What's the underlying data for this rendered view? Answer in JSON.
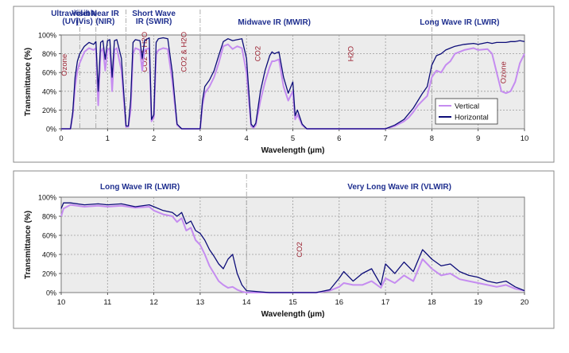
{
  "colors": {
    "vertical": "#c58cf0",
    "horizontal": "#0c0c78",
    "region_label": "#1f2f8f",
    "gas_label": "#9c2332",
    "plot_bg": "#ececec",
    "panel_bg": "#ffffff"
  },
  "chart_data": [
    {
      "type": "line",
      "xlabel": "Wavelength (µm)",
      "ylabel": "Transmittance (%)",
      "xlim": [
        0,
        10
      ],
      "ylim": [
        0,
        100
      ],
      "x_ticks": [
        "0",
        "1",
        "2",
        "3",
        "4",
        "5",
        "6",
        "7",
        "8",
        "9",
        "10"
      ],
      "y_ticks": [
        "0%",
        "20%",
        "40%",
        "60%",
        "80%",
        "100%"
      ],
      "grid": true,
      "legend_position": "right-middle",
      "region_labels": [
        {
          "text": "Ultraviolet\n(UV)",
          "x": 0.2
        },
        {
          "text": "Visible\n(Vis)",
          "x": 0.5
        },
        {
          "text": "Near IR\n(NIR)",
          "x": 0.95
        },
        {
          "text": "Short Wave\nIR (SWIR)",
          "x": 2.0
        },
        {
          "text": "Midwave IR (MWIR)",
          "x": 4.6
        },
        {
          "text": "Long Wave IR (LWIR)",
          "x": 8.6
        }
      ],
      "region_dividers": [
        0.4,
        0.75,
        1.4,
        3.0,
        8.0
      ],
      "gas_labels": [
        {
          "text": "Ozone",
          "x": 0.12,
          "y": 68
        },
        {
          "text": "CO2 & H2O",
          "x": 1.85,
          "y": 82
        },
        {
          "text": "CO2 & H2O",
          "x": 2.7,
          "y": 82
        },
        {
          "text": "CO2",
          "x": 4.3,
          "y": 80
        },
        {
          "text": "H2O",
          "x": 6.3,
          "y": 80
        },
        {
          "text": "Ozone",
          "x": 9.6,
          "y": 60
        }
      ],
      "series": [
        {
          "name": "Vertical",
          "x": [
            0,
            0.2,
            0.25,
            0.3,
            0.35,
            0.4,
            0.5,
            0.6,
            0.7,
            0.75,
            0.8,
            0.85,
            0.9,
            0.95,
            1.0,
            1.05,
            1.1,
            1.15,
            1.2,
            1.3,
            1.4,
            1.45,
            1.5,
            1.55,
            1.6,
            1.7,
            1.75,
            1.8,
            1.9,
            1.95,
            2.0,
            2.05,
            2.1,
            2.2,
            2.3,
            2.4,
            2.5,
            2.6,
            3.0,
            3.05,
            3.1,
            3.2,
            3.3,
            3.4,
            3.5,
            3.6,
            3.7,
            3.8,
            3.9,
            4.0,
            4.1,
            4.15,
            4.2,
            4.3,
            4.4,
            4.5,
            4.55,
            4.6,
            4.7,
            4.8,
            4.9,
            5.0,
            5.05,
            5.1,
            5.2,
            5.3,
            5.5,
            6.0,
            6.5,
            7.0,
            7.2,
            7.4,
            7.5,
            7.6,
            7.7,
            7.8,
            7.9,
            8.0,
            8.1,
            8.2,
            8.3,
            8.4,
            8.5,
            8.7,
            8.9,
            9.0,
            9.2,
            9.3,
            9.4,
            9.5,
            9.6,
            9.7,
            9.8,
            9.9,
            10.0
          ],
          "values": [
            0,
            0,
            15,
            45,
            62,
            70,
            82,
            86,
            84,
            86,
            25,
            82,
            86,
            62,
            84,
            86,
            40,
            84,
            86,
            62,
            2,
            2,
            20,
            80,
            86,
            84,
            62,
            84,
            86,
            8,
            12,
            80,
            84,
            86,
            85,
            50,
            4,
            0,
            0,
            25,
            38,
            45,
            55,
            70,
            88,
            90,
            85,
            88,
            86,
            60,
            3,
            1,
            4,
            30,
            50,
            66,
            72,
            72,
            74,
            45,
            30,
            40,
            10,
            15,
            4,
            0,
            0,
            0,
            0,
            0,
            3,
            8,
            12,
            18,
            25,
            30,
            35,
            55,
            62,
            60,
            68,
            72,
            80,
            84,
            86,
            84,
            85,
            80,
            60,
            40,
            38,
            40,
            50,
            70,
            80
          ]
        },
        {
          "name": "Horizontal",
          "x": [
            0,
            0.2,
            0.25,
            0.3,
            0.35,
            0.4,
            0.5,
            0.6,
            0.7,
            0.75,
            0.8,
            0.85,
            0.9,
            0.95,
            1.0,
            1.05,
            1.1,
            1.15,
            1.2,
            1.3,
            1.4,
            1.45,
            1.5,
            1.55,
            1.6,
            1.7,
            1.75,
            1.8,
            1.9,
            1.95,
            2.0,
            2.05,
            2.1,
            2.2,
            2.3,
            2.4,
            2.5,
            2.6,
            3.0,
            3.05,
            3.1,
            3.2,
            3.3,
            3.4,
            3.5,
            3.6,
            3.7,
            3.8,
            3.9,
            4.0,
            4.1,
            4.15,
            4.2,
            4.3,
            4.4,
            4.5,
            4.55,
            4.6,
            4.7,
            4.8,
            4.9,
            5.0,
            5.05,
            5.1,
            5.2,
            5.3,
            5.5,
            6.0,
            6.5,
            7.0,
            7.2,
            7.4,
            7.5,
            7.6,
            7.7,
            7.8,
            7.9,
            8.0,
            8.1,
            8.2,
            8.3,
            8.4,
            8.5,
            8.7,
            8.9,
            9.0,
            9.2,
            9.3,
            9.4,
            9.5,
            9.6,
            9.7,
            9.8,
            9.9,
            10.0
          ],
          "values": [
            0,
            0,
            18,
            55,
            72,
            80,
            88,
            92,
            90,
            93,
            40,
            92,
            94,
            74,
            94,
            95,
            55,
            94,
            95,
            75,
            3,
            3,
            30,
            92,
            95,
            94,
            75,
            94,
            97,
            10,
            15,
            92,
            96,
            97,
            96,
            60,
            5,
            0,
            0,
            30,
            45,
            52,
            62,
            78,
            93,
            96,
            94,
            95,
            96,
            75,
            5,
            2,
            6,
            40,
            62,
            78,
            82,
            80,
            82,
            55,
            38,
            50,
            14,
            20,
            5,
            0,
            0,
            0,
            0,
            0,
            4,
            10,
            16,
            22,
            30,
            38,
            45,
            68,
            78,
            80,
            84,
            86,
            88,
            90,
            91,
            90,
            92,
            91,
            92,
            92,
            92,
            93,
            93,
            94,
            93
          ]
        }
      ]
    },
    {
      "type": "line",
      "xlabel": "Wavelength (µm)",
      "ylabel": "Transmittance (%)",
      "xlim": [
        10,
        20
      ],
      "ylim": [
        0,
        100
      ],
      "x_ticks": [
        "10",
        "11",
        "12",
        "13",
        "14",
        "15",
        "16",
        "17",
        "18",
        "19",
        "20"
      ],
      "y_ticks": [
        "0%",
        "20%",
        "40%",
        "60%",
        "80%",
        "100%"
      ],
      "grid": true,
      "region_labels": [
        {
          "text": "Long Wave IR (LWIR)",
          "x": 11.7
        },
        {
          "text": "Very Long Wave IR (VLWIR)",
          "x": 17.3
        }
      ],
      "region_dividers": [
        14.0
      ],
      "gas_labels": [
        {
          "text": "CO2",
          "x": 15.2,
          "y": 45
        }
      ],
      "series": [
        {
          "name": "Vertical",
          "x": [
            10,
            10.05,
            10.2,
            10.5,
            10.8,
            11,
            11.3,
            11.6,
            11.9,
            12.0,
            12.2,
            12.4,
            12.5,
            12.6,
            12.7,
            12.8,
            12.9,
            13.0,
            13.1,
            13.2,
            13.3,
            13.4,
            13.5,
            13.6,
            13.7,
            13.8,
            13.9,
            14.0,
            14.5,
            15,
            15.5,
            15.8,
            16.0,
            16.1,
            16.3,
            16.5,
            16.7,
            16.9,
            17.0,
            17.2,
            17.4,
            17.6,
            17.8,
            17.9,
            18.0,
            18.2,
            18.4,
            18.6,
            18.8,
            19.0,
            19.2,
            19.4,
            19.6,
            19.8,
            20
          ],
          "values": [
            80,
            88,
            92,
            90,
            91,
            90,
            91,
            89,
            90,
            86,
            82,
            80,
            74,
            78,
            65,
            68,
            55,
            50,
            40,
            28,
            20,
            12,
            8,
            5,
            6,
            3,
            1,
            0,
            0,
            0,
            0,
            2,
            6,
            10,
            8,
            8,
            12,
            5,
            15,
            10,
            18,
            12,
            35,
            30,
            25,
            18,
            20,
            14,
            12,
            10,
            8,
            6,
            8,
            4,
            2
          ]
        },
        {
          "name": "Horizontal",
          "x": [
            10,
            10.05,
            10.2,
            10.5,
            10.8,
            11,
            11.3,
            11.6,
            11.9,
            12.0,
            12.2,
            12.4,
            12.5,
            12.6,
            12.7,
            12.8,
            12.9,
            13.0,
            13.1,
            13.2,
            13.3,
            13.4,
            13.5,
            13.6,
            13.7,
            13.8,
            13.9,
            14.0,
            14.5,
            15,
            15.5,
            15.8,
            16.0,
            16.1,
            16.3,
            16.5,
            16.7,
            16.9,
            17.0,
            17.2,
            17.4,
            17.6,
            17.8,
            17.9,
            18.0,
            18.2,
            18.4,
            18.6,
            18.8,
            19.0,
            19.2,
            19.4,
            19.6,
            19.8,
            20
          ],
          "values": [
            88,
            94,
            94,
            92,
            93,
            92,
            93,
            90,
            92,
            90,
            86,
            84,
            80,
            84,
            72,
            75,
            65,
            62,
            55,
            45,
            38,
            30,
            25,
            35,
            40,
            20,
            8,
            2,
            0,
            0,
            0,
            3,
            15,
            22,
            12,
            20,
            25,
            8,
            30,
            20,
            32,
            22,
            45,
            40,
            35,
            28,
            30,
            22,
            18,
            16,
            12,
            10,
            12,
            6,
            2
          ]
        }
      ]
    }
  ]
}
